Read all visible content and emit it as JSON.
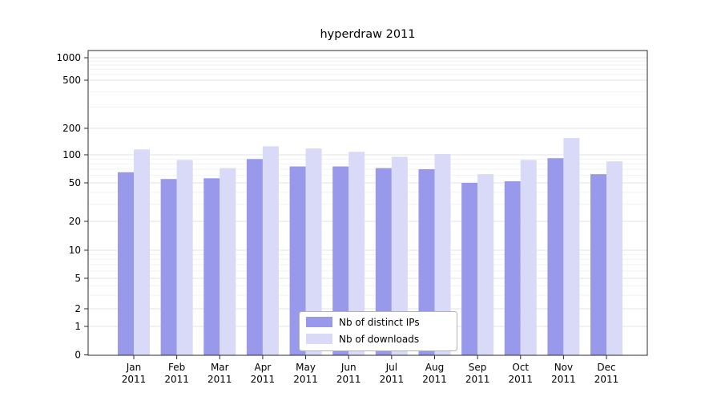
{
  "chart_data": {
    "type": "bar",
    "title": "hyperdraw 2011",
    "categories": [
      "Jan 2011",
      "Feb 2011",
      "Mar 2011",
      "Apr 2011",
      "May 2011",
      "Jun 2011",
      "Jul 2011",
      "Aug 2011",
      "Sep 2011",
      "Oct 2011",
      "Nov 2011",
      "Dec 2011"
    ],
    "x_tick_months": [
      "Jan",
      "Feb",
      "Mar",
      "Apr",
      "May",
      "Jun",
      "Jul",
      "Aug",
      "Sep",
      "Oct",
      "Nov",
      "Dec"
    ],
    "x_tick_year": "2011",
    "series": [
      {
        "name": "Nb of distinct IPs",
        "color": "#9999ec",
        "values": [
          65,
          55,
          56,
          90,
          75,
          75,
          72,
          70,
          50,
          52,
          92,
          62
        ]
      },
      {
        "name": "Nb of downloads",
        "color": "#d9d9f8",
        "values": [
          115,
          88,
          72,
          125,
          118,
          108,
          95,
          102,
          62,
          88,
          155,
          85
        ]
      }
    ],
    "yscale": "symlog",
    "y_ticks": [
      0,
      1,
      2,
      5,
      10,
      20,
      50,
      100,
      200,
      500,
      1000
    ],
    "ylim": [
      0,
      1000
    ],
    "grid": true,
    "legend": {
      "position": "lower center"
    }
  }
}
